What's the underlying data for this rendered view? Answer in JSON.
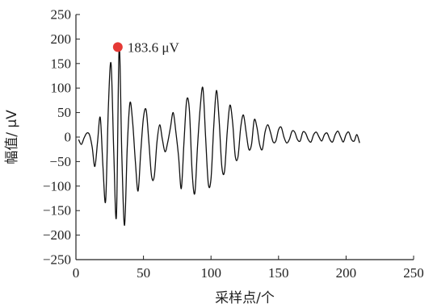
{
  "chart_data": {
    "type": "line",
    "xlabel": "采样点/个",
    "ylabel": "幅值/ μV",
    "xlim": [
      0,
      250
    ],
    "ylim": [
      -250,
      250
    ],
    "xticks": [
      0,
      50,
      100,
      150,
      200,
      250
    ],
    "yticks": [
      250,
      200,
      150,
      100,
      50,
      0,
      -50,
      -100,
      -150,
      -200,
      -250
    ],
    "grid": false,
    "annotation": {
      "x": 31,
      "y": 183.6,
      "label": "183.6 μV",
      "marker_color": "#e53935"
    },
    "series": [
      {
        "line_color": "#111111",
        "x": [
          2,
          4,
          6,
          8,
          10,
          12,
          14,
          16,
          18,
          20,
          22,
          24,
          26,
          28,
          30,
          32,
          34,
          36,
          38,
          40,
          42,
          44,
          46,
          48,
          50,
          52,
          54,
          56,
          58,
          60,
          62,
          64,
          66,
          68,
          70,
          72,
          74,
          76,
          78,
          80,
          82,
          84,
          86,
          88,
          90,
          92,
          94,
          96,
          98,
          100,
          102,
          104,
          106,
          108,
          110,
          112,
          114,
          116,
          118,
          120,
          122,
          124,
          126,
          128,
          130,
          132,
          134,
          136,
          138,
          140,
          142,
          144,
          146,
          148,
          150,
          152,
          154,
          156,
          158,
          160,
          162,
          164,
          166,
          168,
          170,
          172,
          174,
          176,
          178,
          180,
          182,
          184,
          186,
          188,
          190,
          192,
          194,
          196,
          198,
          200,
          202,
          204,
          206,
          208,
          210
        ],
        "y": [
          -5,
          -15,
          -2,
          8,
          5,
          -20,
          -60,
          -10,
          40,
          -60,
          -130,
          60,
          150,
          -30,
          -160,
          183.6,
          -40,
          -180,
          -20,
          70,
          30,
          -50,
          -110,
          -30,
          40,
          55,
          -10,
          -80,
          -80,
          -10,
          25,
          -5,
          -30,
          -10,
          20,
          50,
          10,
          -40,
          -105,
          -10,
          75,
          55,
          -70,
          -115,
          -20,
          60,
          100,
          0,
          -95,
          -85,
          20,
          95,
          35,
          -60,
          -70,
          10,
          65,
          30,
          -40,
          -40,
          20,
          45,
          10,
          -25,
          -15,
          35,
          20,
          -15,
          -25,
          10,
          25,
          10,
          -10,
          -8,
          15,
          20,
          0,
          -12,
          -5,
          12,
          10,
          -5,
          -8,
          10,
          8,
          -5,
          -10,
          5,
          10,
          0,
          -8,
          5,
          8,
          -5,
          -10,
          5,
          12,
          0,
          -10,
          5,
          10,
          -5,
          -8,
          5,
          -12
        ]
      }
    ]
  }
}
